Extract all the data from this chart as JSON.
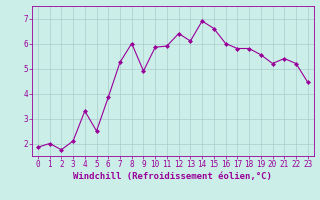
{
  "x": [
    0,
    1,
    2,
    3,
    4,
    5,
    6,
    7,
    8,
    9,
    10,
    11,
    12,
    13,
    14,
    15,
    16,
    17,
    18,
    19,
    20,
    21,
    22,
    23
  ],
  "y": [
    1.85,
    2.0,
    1.75,
    2.1,
    3.3,
    2.5,
    3.85,
    5.25,
    6.0,
    4.9,
    5.85,
    5.9,
    6.4,
    6.1,
    6.9,
    6.6,
    6.0,
    5.8,
    5.8,
    5.55,
    5.2,
    5.4,
    5.2,
    4.45
  ],
  "line_color": "#990099",
  "marker": "D",
  "marker_size": 2,
  "bg_color": "#cceee8",
  "grid_color": "#aacccc",
  "xlabel": "Windchill (Refroidissement éolien,°C)",
  "ylabel": "",
  "yticks": [
    2,
    3,
    4,
    5,
    6,
    7
  ],
  "xticks": [
    0,
    1,
    2,
    3,
    4,
    5,
    6,
    7,
    8,
    9,
    10,
    11,
    12,
    13,
    14,
    15,
    16,
    17,
    18,
    19,
    20,
    21,
    22,
    23
  ],
  "ylim": [
    1.5,
    7.5
  ],
  "xlim": [
    -0.5,
    23.5
  ],
  "axis_color": "#990099",
  "tick_color": "#990099",
  "label_color": "#990099",
  "label_fontsize": 6.5,
  "tick_fontsize": 5.5
}
